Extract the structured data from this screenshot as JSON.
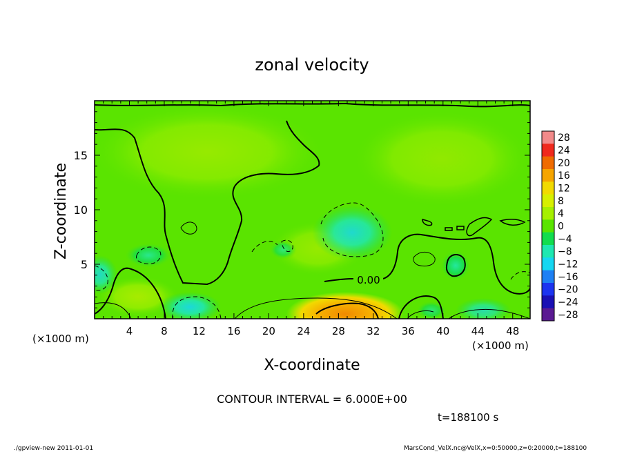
{
  "chart_data": {
    "type": "heatmap",
    "title": "zonal velocity",
    "xlabel": "X-coordinate",
    "ylabel": "Z-coordinate",
    "x_unit_label": "(×1000 m)",
    "y_unit_label": "(×1000 m)",
    "x_range": [
      0,
      50
    ],
    "y_range": [
      0,
      20
    ],
    "x_ticks": [
      4,
      8,
      12,
      16,
      20,
      24,
      28,
      32,
      36,
      40,
      44,
      48
    ],
    "y_ticks": [
      5,
      10,
      15
    ],
    "colorbar": {
      "levels": [
        28,
        24,
        20,
        16,
        12,
        8,
        4,
        0,
        -4,
        -8,
        -12,
        -16,
        -20,
        -24,
        -28
      ],
      "colors": [
        "#f28a8a",
        "#f0291d",
        "#ef6b00",
        "#f6a500",
        "#f2da00",
        "#d7f000",
        "#a6f000",
        "#5ae400",
        "#12dd4e",
        "#1ee8b1",
        "#15d7f2",
        "#1e80f4",
        "#1c34f0",
        "#1a10b4",
        "#5a1a92"
      ]
    },
    "contour_interval_text": "CONTOUR INTERVAL = 6.000E+00",
    "contour_label": "0.00",
    "time_text": "t=188100 s",
    "features": [
      {
        "kind": "max",
        "x": 28.6,
        "y": 0.3,
        "value": 10
      },
      {
        "kind": "min",
        "x": 30,
        "y": 7.6,
        "value": -6
      },
      {
        "kind": "min",
        "x": 11,
        "y": 1.1,
        "value": -8
      },
      {
        "kind": "min",
        "x": 0.6,
        "y": 4.0,
        "value": -7
      },
      {
        "kind": "min",
        "x": 41.2,
        "y": 4.8,
        "value": -6
      },
      {
        "kind": "min",
        "x": 45,
        "y": 0.6,
        "value": -6
      },
      {
        "kind": "max",
        "x": 37,
        "y": 0.8,
        "value": 5
      }
    ]
  },
  "footer": {
    "left": "./gpview-new   2011-01-01",
    "right": "MarsCond_VelX.nc@VelX,x=0:50000,z=0:20000,t=188100"
  },
  "colors": {
    "background_field": "#5ae400",
    "axes": "#000000"
  }
}
